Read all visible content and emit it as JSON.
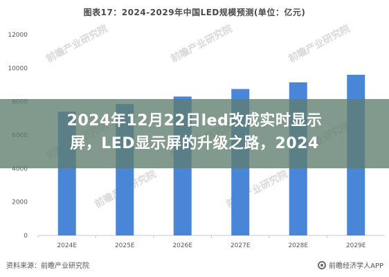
{
  "chart_data": {
    "type": "bar",
    "title": "图表17：2024-2029年中国LED规模预测(单位：亿元)",
    "categories": [
      "2024E",
      "2025E",
      "2026E",
      "2027E",
      "2028E",
      "2029E"
    ],
    "values": [
      7400,
      7850,
      8300,
      8750,
      9150,
      9600
    ],
    "ylim": [
      0,
      12000
    ],
    "yticks": [
      0,
      2000,
      4000,
      6000,
      8000,
      10000,
      12000
    ],
    "bar_color": "#4a86d8",
    "grid": false,
    "legend": "none"
  },
  "watermark": "前瞻产业研究院",
  "overlay_title": "2024年12月22日led改成实时显示屏，LED显示屏的升级之路，2024",
  "source": "资料来源：前瞻产业研究院",
  "brand": "前瞻经济学人APP",
  "colors": {
    "axis": "#c8c8c8",
    "overlay": "#5f7d6e"
  }
}
